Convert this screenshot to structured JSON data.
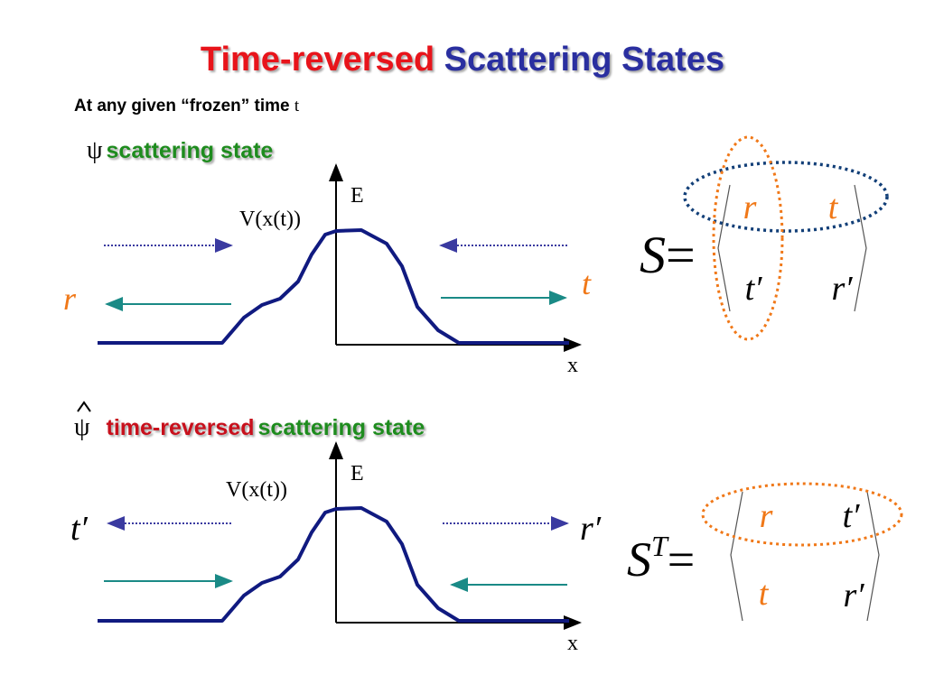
{
  "title": {
    "part1": "Time-reversed",
    "part2": "Scattering States"
  },
  "subtitle": {
    "text": "At any given “frozen” time",
    "variable": "t"
  },
  "panels": [
    {
      "symbol": "ψ",
      "heading": "scattering state",
      "energy_label": "E",
      "potential_label": "V(x(t))",
      "x_label": "x",
      "left_label": "r",
      "right_label": "t",
      "matrix": {
        "symbol": "S",
        "equals": "=",
        "entries": [
          [
            "r",
            "t"
          ],
          [
            "t′",
            "r′"
          ]
        ]
      }
    },
    {
      "symbol": "ψ",
      "heading_red": "time-reversed",
      "heading_green": "scattering state",
      "energy_label": "E",
      "potential_label": "V(x(t))",
      "x_label": "x",
      "left_label": "t′",
      "right_label": "r′",
      "matrix": {
        "symbol": "S",
        "superscript": "T",
        "equals": "=",
        "entries": [
          [
            "r",
            "t′"
          ],
          [
            "t",
            "r′"
          ]
        ]
      }
    }
  ]
}
